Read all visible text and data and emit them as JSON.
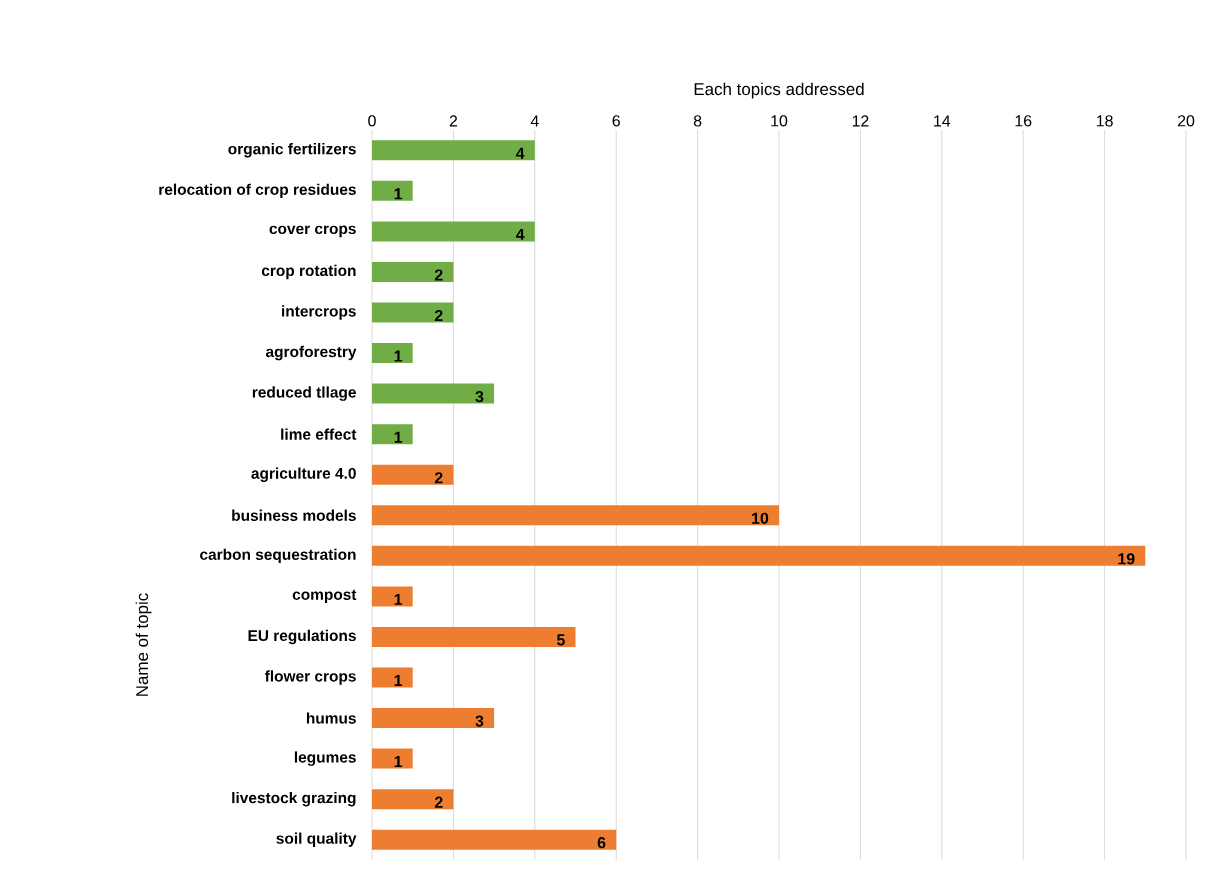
{
  "chart_data": {
    "type": "bar",
    "orientation": "horizontal",
    "xlabel": "Each topics addressed",
    "ylabel": "Name of topic",
    "categories": [
      "organic fertilizers",
      "relocation of crop residues",
      "cover crops",
      "crop rotation",
      "intercrops",
      "agroforestry",
      "reduced tllage",
      "lime effect",
      "agriculture 4.0",
      "business models",
      "carbon sequestration",
      "compost",
      "EU regulations",
      "flower crops",
      "humus",
      "legumes",
      "livestock grazing",
      "soil quality"
    ],
    "values": [
      4,
      1,
      4,
      2,
      2,
      1,
      3,
      1,
      2,
      10,
      19,
      1,
      5,
      1,
      3,
      1,
      2,
      6
    ],
    "colors": [
      "#70ad47",
      "#70ad47",
      "#70ad47",
      "#70ad47",
      "#70ad47",
      "#70ad47",
      "#70ad47",
      "#70ad47",
      "#ed7d31",
      "#ed7d31",
      "#ed7d31",
      "#ed7d31",
      "#ed7d31",
      "#ed7d31",
      "#ed7d31",
      "#ed7d31",
      "#ed7d31",
      "#ed7d31"
    ],
    "xlim": [
      0,
      20
    ],
    "xticks": [
      0,
      2,
      4,
      6,
      8,
      10,
      12,
      14,
      16,
      18,
      20
    ],
    "grid": "x",
    "data_labels": true
  }
}
